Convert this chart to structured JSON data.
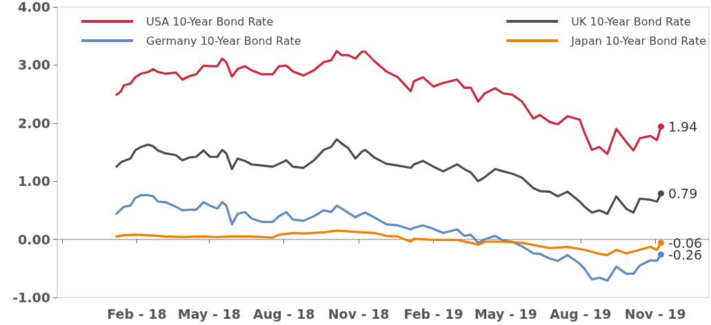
{
  "chart_data": {
    "type": "line",
    "x": [
      "2018-01-07",
      "2018-01-12",
      "2018-01-16",
      "2018-01-24",
      "2018-01-30",
      "2018-02-06",
      "2018-02-15",
      "2018-02-21",
      "2018-02-27",
      "2018-03-08",
      "2018-03-21",
      "2018-03-29",
      "2018-04-07",
      "2018-04-15",
      "2018-04-24",
      "2018-05-02",
      "2018-05-11",
      "2018-05-17",
      "2018-05-22",
      "2018-05-29",
      "2018-06-05",
      "2018-06-14",
      "2018-06-22",
      "2018-07-05",
      "2018-07-18",
      "2018-07-26",
      "2018-08-04",
      "2018-08-12",
      "2018-08-25",
      "2018-09-07",
      "2018-09-19",
      "2018-09-28",
      "2018-10-05",
      "2018-10-11",
      "2018-10-19",
      "2018-10-28",
      "2018-11-05",
      "2018-11-09",
      "2018-11-20",
      "2018-12-05",
      "2018-12-19",
      "2019-01-04",
      "2019-01-08",
      "2019-01-19",
      "2019-02-01",
      "2019-02-13",
      "2019-03-02",
      "2019-03-11",
      "2019-03-19",
      "2019-03-28",
      "2019-04-05",
      "2019-04-18",
      "2019-04-28",
      "2019-05-09",
      "2019-05-21",
      "2019-06-04",
      "2019-06-12",
      "2019-06-24",
      "2019-07-04",
      "2019-07-16",
      "2019-07-31",
      "2019-08-06",
      "2019-08-15",
      "2019-08-24",
      "2019-09-03",
      "2019-09-14",
      "2019-09-26",
      "2019-10-05",
      "2019-10-13",
      "2019-10-26",
      "2019-11-03",
      "2019-11-08"
    ],
    "series": [
      {
        "name": "USA 10-Year Bond Rate",
        "color": "#c8283a",
        "values": [
          2.49,
          2.54,
          2.65,
          2.68,
          2.79,
          2.85,
          2.88,
          2.93,
          2.88,
          2.85,
          2.87,
          2.75,
          2.81,
          2.84,
          2.99,
          2.98,
          2.98,
          3.11,
          3.05,
          2.8,
          2.93,
          2.98,
          2.91,
          2.84,
          2.84,
          2.98,
          2.99,
          2.89,
          2.82,
          2.91,
          3.05,
          3.08,
          3.24,
          3.17,
          3.17,
          3.11,
          3.23,
          3.23,
          3.07,
          2.89,
          2.79,
          2.55,
          2.72,
          2.79,
          2.63,
          2.69,
          2.75,
          2.61,
          2.61,
          2.37,
          2.51,
          2.6,
          2.51,
          2.49,
          2.37,
          2.08,
          2.14,
          2.02,
          1.98,
          2.12,
          2.06,
          1.83,
          1.54,
          1.59,
          1.47,
          1.9,
          1.68,
          1.53,
          1.74,
          1.78,
          1.71,
          1.94
        ],
        "value_labels": [
          null,
          null,
          null,
          null,
          null,
          null,
          null,
          null,
          null,
          null,
          null,
          null,
          null,
          null,
          null,
          null,
          null,
          null,
          null,
          null,
          null,
          null,
          null,
          null,
          null,
          null,
          null,
          null,
          null,
          null,
          null,
          null,
          null,
          null,
          null,
          null,
          null,
          null,
          null,
          null,
          null,
          null,
          null,
          null,
          null,
          null,
          null,
          null,
          null,
          null,
          null,
          null,
          null,
          null,
          null,
          null,
          null,
          null,
          null,
          null,
          null,
          null,
          null,
          null,
          null,
          null,
          null,
          null,
          null,
          null,
          null,
          "1.94"
        ]
      },
      {
        "name": "UK 10-Year Bond Rate",
        "color": "#4a4a4a",
        "values": [
          1.25,
          1.32,
          1.35,
          1.39,
          1.53,
          1.59,
          1.63,
          1.6,
          1.53,
          1.48,
          1.45,
          1.36,
          1.41,
          1.42,
          1.53,
          1.42,
          1.42,
          1.54,
          1.48,
          1.21,
          1.39,
          1.35,
          1.29,
          1.27,
          1.25,
          1.3,
          1.36,
          1.25,
          1.23,
          1.36,
          1.54,
          1.59,
          1.72,
          1.65,
          1.57,
          1.39,
          1.51,
          1.54,
          1.41,
          1.3,
          1.27,
          1.23,
          1.29,
          1.35,
          1.25,
          1.17,
          1.29,
          1.21,
          1.15,
          1.0,
          1.07,
          1.21,
          1.17,
          1.13,
          1.06,
          0.88,
          0.83,
          0.82,
          0.74,
          0.82,
          0.65,
          0.56,
          0.46,
          0.5,
          0.44,
          0.74,
          0.53,
          0.46,
          0.7,
          0.68,
          0.65,
          0.79
        ],
        "value_labels": [
          null,
          null,
          null,
          null,
          null,
          null,
          null,
          null,
          null,
          null,
          null,
          null,
          null,
          null,
          null,
          null,
          null,
          null,
          null,
          null,
          null,
          null,
          null,
          null,
          null,
          null,
          null,
          null,
          null,
          null,
          null,
          null,
          null,
          null,
          null,
          null,
          null,
          null,
          null,
          null,
          null,
          null,
          null,
          null,
          null,
          null,
          null,
          null,
          null,
          null,
          null,
          null,
          null,
          null,
          null,
          null,
          null,
          null,
          null,
          null,
          null,
          null,
          null,
          null,
          null,
          null,
          null,
          null,
          null,
          null,
          null,
          "0.79"
        ]
      },
      {
        "name": "Germany 10-Year Bond Rate",
        "color": "#5b8ac0",
        "values": [
          0.44,
          0.51,
          0.56,
          0.58,
          0.71,
          0.76,
          0.76,
          0.74,
          0.65,
          0.64,
          0.56,
          0.5,
          0.51,
          0.51,
          0.64,
          0.58,
          0.53,
          0.64,
          0.58,
          0.26,
          0.44,
          0.47,
          0.36,
          0.3,
          0.3,
          0.4,
          0.47,
          0.34,
          0.32,
          0.4,
          0.5,
          0.47,
          0.58,
          0.53,
          0.46,
          0.38,
          0.44,
          0.46,
          0.38,
          0.26,
          0.24,
          0.17,
          0.2,
          0.24,
          0.18,
          0.11,
          0.17,
          0.06,
          0.08,
          -0.06,
          0.0,
          0.06,
          -0.02,
          -0.04,
          -0.12,
          -0.24,
          -0.25,
          -0.33,
          -0.37,
          -0.27,
          -0.42,
          -0.51,
          -0.69,
          -0.66,
          -0.71,
          -0.47,
          -0.59,
          -0.59,
          -0.45,
          -0.36,
          -0.37,
          -0.26
        ],
        "value_labels": [
          null,
          null,
          null,
          null,
          null,
          null,
          null,
          null,
          null,
          null,
          null,
          null,
          null,
          null,
          null,
          null,
          null,
          null,
          null,
          null,
          null,
          null,
          null,
          null,
          null,
          null,
          null,
          null,
          null,
          null,
          null,
          null,
          null,
          null,
          null,
          null,
          null,
          null,
          null,
          null,
          null,
          null,
          null,
          null,
          null,
          null,
          null,
          null,
          null,
          null,
          null,
          null,
          null,
          null,
          null,
          null,
          null,
          null,
          null,
          null,
          null,
          null,
          null,
          null,
          null,
          null,
          null,
          null,
          null,
          null,
          null,
          "-0.26"
        ]
      },
      {
        "name": "Japan 10-Year Bond Rate",
        "color": "#f07d00",
        "x": [
          "2018-01-07",
          "2018-01-16",
          "2018-01-30",
          "2018-02-15",
          "2018-03-08",
          "2018-03-29",
          "2018-04-24",
          "2018-05-11",
          "2018-05-29",
          "2018-06-22",
          "2018-07-18",
          "2018-07-26",
          "2018-08-12",
          "2018-08-25",
          "2018-09-19",
          "2018-10-05",
          "2018-10-28",
          "2018-11-05",
          "2018-11-20",
          "2018-12-05",
          "2018-12-19",
          "2019-01-04",
          "2019-01-08",
          "2019-02-01",
          "2019-03-02",
          "2019-03-19",
          "2019-03-28",
          "2019-04-05",
          "2019-04-28",
          "2019-05-21",
          "2019-06-24",
          "2019-07-16",
          "2019-08-06",
          "2019-08-24",
          "2019-09-03",
          "2019-09-14",
          "2019-09-26",
          "2019-10-05",
          "2019-10-26",
          "2019-11-03",
          "2019-11-08"
        ],
        "values": [
          0.05,
          0.07,
          0.08,
          0.07,
          0.05,
          0.04,
          0.05,
          0.04,
          0.05,
          0.05,
          0.03,
          0.08,
          0.11,
          0.1,
          0.12,
          0.15,
          0.13,
          0.12,
          0.11,
          0.06,
          0.05,
          -0.04,
          0.01,
          -0.01,
          -0.01,
          -0.06,
          -0.09,
          -0.04,
          -0.04,
          -0.06,
          -0.15,
          -0.13,
          -0.18,
          -0.25,
          -0.27,
          -0.18,
          -0.24,
          -0.21,
          -0.13,
          -0.18,
          -0.06
        ],
        "value_labels": [
          null,
          null,
          null,
          null,
          null,
          null,
          null,
          null,
          null,
          null,
          null,
          null,
          null,
          null,
          null,
          null,
          null,
          null,
          null,
          null,
          null,
          null,
          null,
          null,
          null,
          null,
          null,
          null,
          null,
          null,
          null,
          null,
          null,
          null,
          null,
          null,
          null,
          null,
          null,
          null,
          "-0.06"
        ]
      }
    ],
    "xlim": [
      "2017-10-26",
      "2020-01-06"
    ],
    "xticks": [
      {
        "value": "2017-11-01",
        "label": null
      },
      {
        "value": "2018-02-01",
        "label": "Feb - 18"
      },
      {
        "value": "2018-05-01",
        "label": "May - 18"
      },
      {
        "value": "2018-08-01",
        "label": "Aug - 18"
      },
      {
        "value": "2018-11-01",
        "label": "Nov - 18"
      },
      {
        "value": "2019-02-01",
        "label": "Feb - 19"
      },
      {
        "value": "2019-05-01",
        "label": "May - 19"
      },
      {
        "value": "2019-08-01",
        "label": "Aug - 19"
      },
      {
        "value": "2019-11-01",
        "label": "Nov - 19"
      }
    ],
    "ylim": [
      -1,
      4
    ],
    "yticks": [
      {
        "value": -1,
        "label": "-1.00"
      },
      {
        "value": 0,
        "label": "0.00"
      },
      {
        "value": 1,
        "label": "1.00"
      },
      {
        "value": 2,
        "label": "2.00"
      },
      {
        "value": 3,
        "label": "3.00"
      },
      {
        "value": 4,
        "label": "4.00"
      }
    ],
    "ref_lines": [
      {
        "axis": "y",
        "value": 0,
        "color": "#555555",
        "line_style": "dotted"
      }
    ],
    "grid": false,
    "legend": "top",
    "line_style": "solid"
  }
}
